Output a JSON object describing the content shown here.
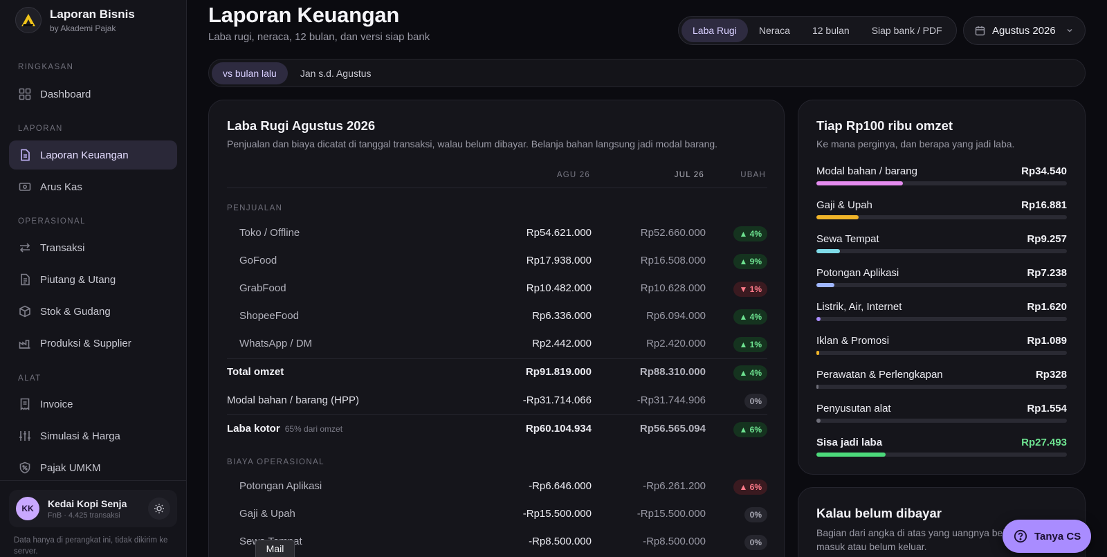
{
  "brand": {
    "title": "Laporan Bisnis",
    "subtitle": "by Akademi Pajak"
  },
  "sidebar": {
    "sections": [
      {
        "label": "RINGKASAN"
      },
      {
        "label": "LAPORAN"
      },
      {
        "label": "OPERASIONAL"
      },
      {
        "label": "ALAT"
      }
    ],
    "items": [
      {
        "label": "Dashboard",
        "icon": "grid-icon"
      },
      {
        "label": "Laporan Keuangan",
        "icon": "document-icon",
        "active": true
      },
      {
        "label": "Arus Kas",
        "icon": "cash-icon"
      },
      {
        "label": "Transaksi",
        "icon": "swap-icon"
      },
      {
        "label": "Piutang & Utang",
        "icon": "receipt-icon"
      },
      {
        "label": "Stok & Gudang",
        "icon": "box-icon"
      },
      {
        "label": "Produksi & Supplier",
        "icon": "factory-icon"
      },
      {
        "label": "Invoice",
        "icon": "invoice-icon"
      },
      {
        "label": "Simulasi & Harga",
        "icon": "sliders-icon"
      },
      {
        "label": "Pajak UMKM",
        "icon": "tax-badge-icon"
      }
    ],
    "user": {
      "initials": "KK",
      "name": "Kedai Kopi Senja",
      "meta": "FnB · 4.425 transaksi"
    },
    "note": "Data hanya di perangkat ini, tidak dikirim ke server."
  },
  "header": {
    "title": "Laporan Keuangan",
    "subtitle": "Laba rugi, neraca, 12 bulan, dan versi siap bank",
    "tabs": [
      {
        "label": "Laba Rugi",
        "active": true
      },
      {
        "label": "Neraca"
      },
      {
        "label": "12 bulan"
      },
      {
        "label": "Siap bank / PDF"
      }
    ],
    "period": "Agustus 2026"
  },
  "compare": {
    "options": [
      {
        "label": "vs bulan lalu",
        "active": true
      },
      {
        "label": "Jan s.d. Agustus"
      }
    ]
  },
  "pl": {
    "title": "Laba Rugi Agustus 2026",
    "subtitle": "Penjualan dan biaya dicatat di tanggal transaksi, walau belum dibayar. Belanja bahan langsung jadi modal barang.",
    "columns": {
      "current": "AGU 26",
      "previous": "JUL 26",
      "change": "UBAH"
    },
    "sales_label": "PENJUALAN",
    "sales": [
      {
        "label": "Toko / Offline",
        "current": "Rp54.621.000",
        "previous": "Rp52.660.000",
        "change": "▲ 4%",
        "trend": "up"
      },
      {
        "label": "GoFood",
        "current": "Rp17.938.000",
        "previous": "Rp16.508.000",
        "change": "▲ 9%",
        "trend": "up"
      },
      {
        "label": "GrabFood",
        "current": "Rp10.482.000",
        "previous": "Rp10.628.000",
        "change": "▼ 1%",
        "trend": "down"
      },
      {
        "label": "ShopeeFood",
        "current": "Rp6.336.000",
        "previous": "Rp6.094.000",
        "change": "▲ 4%",
        "trend": "up"
      },
      {
        "label": "WhatsApp / DM",
        "current": "Rp2.442.000",
        "previous": "Rp2.420.000",
        "change": "▲ 1%",
        "trend": "up"
      }
    ],
    "total": {
      "label": "Total omzet",
      "current": "Rp91.819.000",
      "previous": "Rp88.310.000",
      "change": "▲ 4%"
    },
    "cogs": {
      "label": "Modal bahan / barang (HPP)",
      "current": "-Rp31.714.066",
      "previous": "-Rp31.744.906",
      "change": "0%"
    },
    "gross": {
      "label": "Laba kotor",
      "note": "65% dari omzet",
      "current": "Rp60.104.934",
      "previous": "Rp56.565.094",
      "change": "▲ 6%"
    },
    "opex_label": "BIAYA OPERASIONAL",
    "opex": [
      {
        "label": "Potongan Aplikasi",
        "current": "-Rp6.646.000",
        "previous": "-Rp6.261.200",
        "change": "▲ 6%",
        "trend": "down"
      },
      {
        "label": "Gaji & Upah",
        "current": "-Rp15.500.000",
        "previous": "-Rp15.500.000",
        "change": "0%",
        "trend": "flat"
      },
      {
        "label": "Sewa Tempat",
        "current": "-Rp8.500.000",
        "previous": "-Rp8.500.000",
        "change": "0%",
        "trend": "flat"
      }
    ]
  },
  "breakdown": {
    "title": "Tiap Rp100 ribu omzet",
    "subtitle": "Ke mana perginya, dan berapa yang jadi laba.",
    "items": [
      {
        "label": "Modal bahan / barang",
        "value": "Rp34.540",
        "fraction": 0.3454,
        "color": "#e58cf0"
      },
      {
        "label": "Gaji & Upah",
        "value": "Rp16.881",
        "fraction": 0.1688,
        "color": "#f0b429"
      },
      {
        "label": "Sewa Tempat",
        "value": "Rp9.257",
        "fraction": 0.0926,
        "color": "#7fdbe8"
      },
      {
        "label": "Potongan Aplikasi",
        "value": "Rp7.238",
        "fraction": 0.0724,
        "color": "#9fb6ff"
      },
      {
        "label": "Listrik, Air, Internet",
        "value": "Rp1.620",
        "fraction": 0.0162,
        "color": "#a98cff"
      },
      {
        "label": "Iklan & Promosi",
        "value": "Rp1.089",
        "fraction": 0.0109,
        "color": "#f0b429"
      },
      {
        "label": "Perawatan & Perlengkapan",
        "value": "Rp328",
        "fraction": 0.0033,
        "color": "#6f6f7a"
      },
      {
        "label": "Penyusutan alat",
        "value": "Rp1.554",
        "fraction": 0.0155,
        "color": "#6f6f7a"
      },
      {
        "label": "Sisa jadi laba",
        "value": "Rp27.493",
        "fraction": 0.2749,
        "color": "#4cd97b"
      }
    ]
  },
  "unpaid": {
    "title": "Kalau belum dibayar",
    "subtitle": "Bagian dari angka di atas yang uangnya belum masuk atau belum keluar."
  },
  "help": {
    "label": "Tanya CS"
  },
  "tooltip": {
    "label": "Mail"
  }
}
